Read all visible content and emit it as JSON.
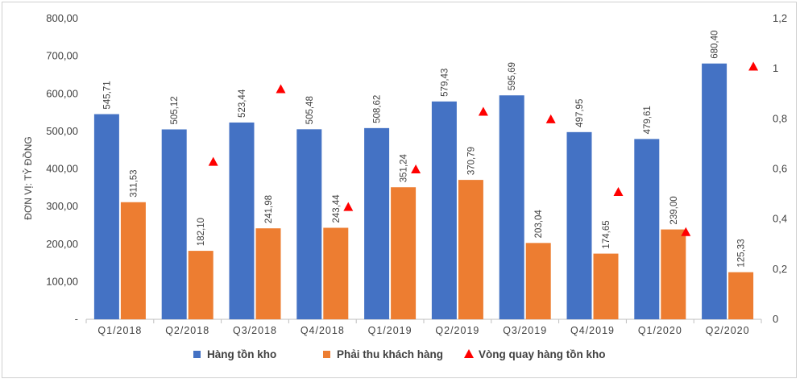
{
  "chart_data": {
    "type": "bar",
    "categories": [
      "Q1/2018",
      "Q2/2018",
      "Q3/2018",
      "Q4/2018",
      "Q1/2019",
      "Q2/2019",
      "Q3/2019",
      "Q4/2019",
      "Q1/2020",
      "Q2/2020"
    ],
    "series": [
      {
        "name": "Hàng tồn kho",
        "kind": "bar",
        "axis": "left",
        "color": "#4472C4",
        "values": [
          545.71,
          505.12,
          523.44,
          505.48,
          508.62,
          579.43,
          595.69,
          497.95,
          479.61,
          680.4
        ],
        "labels": [
          "545,71",
          "505,12",
          "523,44",
          "505,48",
          "508,62",
          "579,43",
          "595,69",
          "497,95",
          "479,61",
          "680,40"
        ]
      },
      {
        "name": "Phải thu khách hàng",
        "kind": "bar",
        "axis": "left",
        "color": "#ED7D31",
        "values": [
          311.53,
          182.1,
          241.98,
          243.44,
          351.24,
          370.79,
          203.04,
          174.65,
          239.0,
          125.33
        ],
        "labels": [
          "311,53",
          "182,10",
          "241,98",
          "243,44",
          "351,24",
          "370,79",
          "203,04",
          "174,65",
          "239,00",
          "125,33"
        ]
      },
      {
        "name": "Vòng quay hàng tồn kho",
        "kind": "marker",
        "axis": "right",
        "color": "#FF0000",
        "values": [
          null,
          0.63,
          0.92,
          0.45,
          0.6,
          0.83,
          0.8,
          0.51,
          0.35,
          1.01
        ]
      }
    ],
    "ylabel": "ĐƠN VỊ: TỶ ĐỒNG",
    "ylim": [
      0,
      800
    ],
    "y_ticks": [
      "-",
      "100,00",
      "200,00",
      "300,00",
      "400,00",
      "500,00",
      "600,00",
      "700,00",
      "800,00"
    ],
    "y2lim": [
      0,
      1.2
    ],
    "y2_ticks": [
      "0",
      "0,2",
      "0,4",
      "0,6",
      "0,8",
      "1",
      "1,2"
    ],
    "grid": false,
    "legend_position": "bottom"
  }
}
